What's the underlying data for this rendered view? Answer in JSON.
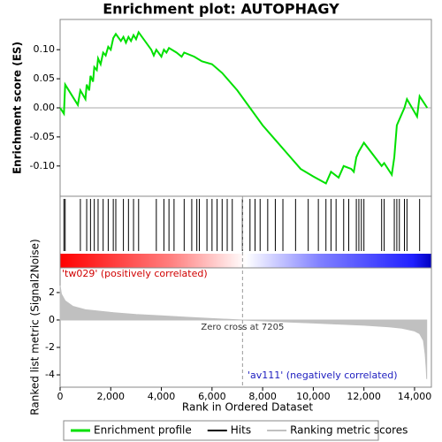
{
  "chart_data": [
    {
      "type": "line",
      "title": "Enrichment plot: AUTOPHAGY",
      "ylabel": "Enrichment score (ES)",
      "x": [
        0,
        150,
        200,
        700,
        800,
        1000,
        1050,
        1150,
        1200,
        1300,
        1350,
        1450,
        1500,
        1600,
        1700,
        1800,
        1900,
        2000,
        2100,
        2200,
        2400,
        2500,
        2600,
        2700,
        2800,
        2900,
        3000,
        3100,
        3600,
        3700,
        3800,
        4000,
        4100,
        4200,
        4300,
        4600,
        4800,
        4900,
        5300,
        5600,
        6000,
        6400,
        7000,
        7500,
        8000,
        8500,
        9000,
        9500,
        10000,
        10500,
        10700,
        11000,
        11200,
        11500,
        11600,
        11700,
        11800,
        12000,
        12700,
        12800,
        13100,
        13200,
        13300,
        13500,
        13600,
        13700,
        14100,
        14200,
        14500
      ],
      "series": [
        {
          "name": "Enrichment profile",
          "color": "#00e000",
          "values": [
            0.0,
            -0.01,
            0.04,
            0.005,
            0.03,
            0.015,
            0.04,
            0.03,
            0.055,
            0.045,
            0.07,
            0.065,
            0.085,
            0.075,
            0.095,
            0.09,
            0.105,
            0.1,
            0.12,
            0.127,
            0.115,
            0.122,
            0.112,
            0.122,
            0.115,
            0.125,
            0.118,
            0.13,
            0.1,
            0.09,
            0.1,
            0.088,
            0.1,
            0.095,
            0.103,
            0.095,
            0.088,
            0.095,
            0.088,
            0.08,
            0.075,
            0.06,
            0.03,
            0.0,
            -0.03,
            -0.055,
            -0.08,
            -0.105,
            -0.118,
            -0.13,
            -0.11,
            -0.12,
            -0.1,
            -0.105,
            -0.11,
            -0.085,
            -0.075,
            -0.06,
            -0.1,
            -0.095,
            -0.115,
            -0.085,
            -0.03,
            -0.01,
            0.0,
            0.015,
            -0.015,
            0.02,
            0.0
          ]
        }
      ],
      "xlim": [
        0,
        14665
      ],
      "ylim": [
        -0.152,
        0.152
      ],
      "yticks": [
        {
          "value": 0.1,
          "label": "0.10"
        },
        {
          "value": 0.05,
          "label": "0.05"
        },
        {
          "value": 0,
          "label": "0.00"
        },
        {
          "value": -0.05,
          "label": "-0.05"
        },
        {
          "value": -0.1,
          "label": "-0.10"
        }
      ]
    },
    {
      "type": "rug",
      "x": [
        150,
        200,
        800,
        1050,
        1200,
        1350,
        1500,
        1700,
        1900,
        2100,
        2200,
        2500,
        2700,
        2900,
        3100,
        3800,
        4100,
        4300,
        4500,
        4900,
        5200,
        5400,
        5500,
        5800,
        6000,
        6200,
        6400,
        6600,
        6800,
        7200,
        7500,
        7700,
        7900,
        8200,
        8500,
        8800,
        9300,
        9800,
        10200,
        10500,
        10700,
        10900,
        11200,
        11400,
        11700,
        11800,
        11900,
        12000,
        12700,
        12800,
        13200,
        13300,
        13400,
        13600,
        13700,
        14200
      ],
      "series": [
        {
          "name": "Hits",
          "color": "#000000"
        }
      ],
      "xlim": [
        0,
        14665
      ]
    },
    {
      "type": "area",
      "ylabel": "Ranked list metric (Signal2Noise)",
      "xlabel": "Rank in Ordered Dataset",
      "x": [
        0,
        50,
        200,
        500,
        1000,
        2000,
        3000,
        4000,
        5000,
        6000,
        7205,
        8000,
        9000,
        10000,
        11000,
        12000,
        13000,
        13500,
        14000,
        14200,
        14350,
        14420,
        14460,
        14480
      ],
      "series": [
        {
          "name": "Ranking metric scores",
          "color": "#c0c0c0",
          "values": [
            2.5,
            1.9,
            1.4,
            1.0,
            0.75,
            0.55,
            0.4,
            0.3,
            0.2,
            0.1,
            0,
            -0.07,
            -0.15,
            -0.22,
            -0.3,
            -0.38,
            -0.5,
            -0.6,
            -0.8,
            -1.0,
            -1.5,
            -2.5,
            -3.5,
            -4.3
          ]
        }
      ],
      "xlim": [
        0,
        14665
      ],
      "ylim": [
        -4.9,
        3.8
      ],
      "yticks": [
        2,
        0,
        -2,
        -4
      ],
      "xticks": [
        0,
        {
          "value": 2000,
          "label": "2,000"
        },
        {
          "value": 4000,
          "label": "4,000"
        },
        {
          "value": 6000,
          "label": "6,000"
        },
        {
          "value": 8000,
          "label": "8,000"
        },
        {
          "value": 10000,
          "label": "10,000"
        },
        {
          "value": 12000,
          "label": "12,000"
        },
        {
          "value": 14000,
          "label": "14,000"
        }
      ],
      "zero_cross": 7205,
      "annotations": [
        "'tw029' (positively correlated)",
        "Zero cross at 7205",
        "'av111' (negatively correlated)"
      ]
    }
  ]
}
